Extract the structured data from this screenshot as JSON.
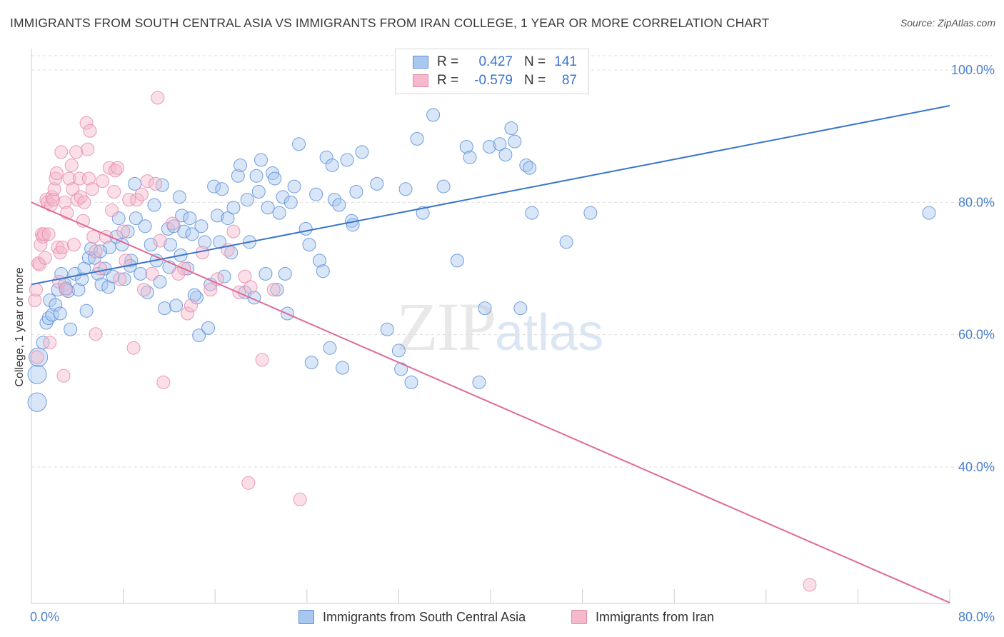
{
  "title": "IMMIGRANTS FROM SOUTH CENTRAL ASIA VS IMMIGRANTS FROM IRAN COLLEGE, 1 YEAR OR MORE CORRELATION CHART",
  "source": "Source: ZipAtlas.com",
  "watermark": {
    "zip": "ZIP",
    "atlas": "atlas"
  },
  "legend": {
    "rows": [
      {
        "r_label": "R =",
        "r_value": "0.427",
        "n_label": "N =",
        "n_value": "141"
      },
      {
        "r_label": "R =",
        "r_value": "-0.579",
        "n_label": "N =",
        "n_value": "87"
      }
    ]
  },
  "colors": {
    "blue_fill": "#a9c8f0",
    "blue_stroke": "#5b8ed6",
    "blue_line": "#3a75cc",
    "pink_fill": "#f5b9cc",
    "pink_stroke": "#e889a8",
    "pink_line": "#e06a98",
    "grid": "#dddddd",
    "tick_text": "#4a7fd0"
  },
  "chart_data": {
    "type": "scatter",
    "ylabel": "College, 1 year or more",
    "xlabel": "",
    "xlim": [
      0,
      80
    ],
    "ylim": [
      20,
      104
    ],
    "x_ticks": [
      "0.0%",
      "80.0%"
    ],
    "y_ticks": [
      {
        "value": 40,
        "label": "40.0%"
      },
      {
        "value": 60,
        "label": "60.0%"
      },
      {
        "value": 80,
        "label": "80.0%"
      },
      {
        "value": 100,
        "label": "100.0%"
      }
    ],
    "grid": true,
    "series": [
      {
        "name": "Immigrants from South Central Asia",
        "color": "blue",
        "trend": {
          "x1": 0,
          "y1": 67.6,
          "x2": 80,
          "y2": 94.6
        },
        "points": [
          [
            0.5,
            49.8
          ],
          [
            0.5,
            54.0
          ],
          [
            0.6,
            56.6
          ],
          [
            1.0,
            58.8
          ],
          [
            1.3,
            61.8
          ],
          [
            1.5,
            62.5
          ],
          [
            1.6,
            65.2
          ],
          [
            1.8,
            63.0
          ],
          [
            2.1,
            64.5
          ],
          [
            2.3,
            66.8
          ],
          [
            2.5,
            63.2
          ],
          [
            2.6,
            69.2
          ],
          [
            2.9,
            67.6
          ],
          [
            3.2,
            66.6
          ],
          [
            3.4,
            60.8
          ],
          [
            3.8,
            69.2
          ],
          [
            4.1,
            66.8
          ],
          [
            4.4,
            68.4
          ],
          [
            4.6,
            70.0
          ],
          [
            4.8,
            63.6
          ],
          [
            5.0,
            71.6
          ],
          [
            5.5,
            71.6
          ],
          [
            5.8,
            69.2
          ],
          [
            6.1,
            67.6
          ],
          [
            6.4,
            70.0
          ],
          [
            6.7,
            67.2
          ],
          [
            6.8,
            73.2
          ],
          [
            7.1,
            68.8
          ],
          [
            7.4,
            74.8
          ],
          [
            7.6,
            77.6
          ],
          [
            7.9,
            73.6
          ],
          [
            8.1,
            68.4
          ],
          [
            8.4,
            75.6
          ],
          [
            8.7,
            71.2
          ],
          [
            9.1,
            77.6
          ],
          [
            9.5,
            69.2
          ],
          [
            9.9,
            76.4
          ],
          [
            10.1,
            66.4
          ],
          [
            10.4,
            73.6
          ],
          [
            10.7,
            79.6
          ],
          [
            10.9,
            71.2
          ],
          [
            11.2,
            68.0
          ],
          [
            11.6,
            64.0
          ],
          [
            11.9,
            76.0
          ],
          [
            12.1,
            73.6
          ],
          [
            12.4,
            76.4
          ],
          [
            12.6,
            64.4
          ],
          [
            12.9,
            80.8
          ],
          [
            13.1,
            78.0
          ],
          [
            13.3,
            75.6
          ],
          [
            13.6,
            70.0
          ],
          [
            13.8,
            77.6
          ],
          [
            14.0,
            75.2
          ],
          [
            14.4,
            65.6
          ],
          [
            14.6,
            59.9
          ],
          [
            14.8,
            76.4
          ],
          [
            15.1,
            74.0
          ],
          [
            15.4,
            61.0
          ],
          [
            15.6,
            67.6
          ],
          [
            15.9,
            82.4
          ],
          [
            16.2,
            78.0
          ],
          [
            16.4,
            74.0
          ],
          [
            16.8,
            68.8
          ],
          [
            17.1,
            77.6
          ],
          [
            17.4,
            72.4
          ],
          [
            17.6,
            79.2
          ],
          [
            18.0,
            84.0
          ],
          [
            18.2,
            85.6
          ],
          [
            18.6,
            66.4
          ],
          [
            19.0,
            74.0
          ],
          [
            19.4,
            65.6
          ],
          [
            19.6,
            84.0
          ],
          [
            19.8,
            81.6
          ],
          [
            20.0,
            86.4
          ],
          [
            20.4,
            69.2
          ],
          [
            20.6,
            79.2
          ],
          [
            21.0,
            84.4
          ],
          [
            21.4,
            66.8
          ],
          [
            21.6,
            78.4
          ],
          [
            21.9,
            80.8
          ],
          [
            22.1,
            69.2
          ],
          [
            22.3,
            63.2
          ],
          [
            22.6,
            80.0
          ],
          [
            22.9,
            82.4
          ],
          [
            23.3,
            88.8
          ],
          [
            23.9,
            76.0
          ],
          [
            24.4,
            55.8
          ],
          [
            24.8,
            81.2
          ],
          [
            25.1,
            71.2
          ],
          [
            25.4,
            69.6
          ],
          [
            25.7,
            86.8
          ],
          [
            26.2,
            85.6
          ],
          [
            26.4,
            80.4
          ],
          [
            26.8,
            79.6
          ],
          [
            27.1,
            55.0
          ],
          [
            27.5,
            86.4
          ],
          [
            27.9,
            77.2
          ],
          [
            28.3,
            81.6
          ],
          [
            28.8,
            87.6
          ],
          [
            30.1,
            82.8
          ],
          [
            31.0,
            60.8
          ],
          [
            32.0,
            57.6
          ],
          [
            32.2,
            54.8
          ],
          [
            32.6,
            82.0
          ],
          [
            33.1,
            52.8
          ],
          [
            33.6,
            89.6
          ],
          [
            34.1,
            78.4
          ],
          [
            35.0,
            93.2
          ],
          [
            35.9,
            82.4
          ],
          [
            37.1,
            71.2
          ],
          [
            37.9,
            88.4
          ],
          [
            38.2,
            86.8
          ],
          [
            39.5,
            64.0
          ],
          [
            39.9,
            88.4
          ],
          [
            40.8,
            88.8
          ],
          [
            41.3,
            87.2
          ],
          [
            41.8,
            91.2
          ],
          [
            42.1,
            89.2
          ],
          [
            42.6,
            64.0
          ],
          [
            43.1,
            85.6
          ],
          [
            43.4,
            85.2
          ],
          [
            43.6,
            78.4
          ],
          [
            46.6,
            74.0
          ],
          [
            48.7,
            78.4
          ],
          [
            39.0,
            52.8
          ],
          [
            3.0,
            67.0
          ],
          [
            5.2,
            73.0
          ],
          [
            9.0,
            82.8
          ],
          [
            11.4,
            82.6
          ],
          [
            13.0,
            72.0
          ],
          [
            16.6,
            82.0
          ],
          [
            18.8,
            80.4
          ],
          [
            21.2,
            83.6
          ],
          [
            24.2,
            73.6
          ],
          [
            26.0,
            58.0
          ],
          [
            28.0,
            76.6
          ],
          [
            6.0,
            72.6
          ],
          [
            8.6,
            70.4
          ],
          [
            12.0,
            70.2
          ],
          [
            14.2,
            66.0
          ],
          [
            78.2,
            78.4
          ]
        ]
      },
      {
        "name": "Immigrants from Iran",
        "color": "pink",
        "trend": {
          "x1": 0,
          "y1": 80.0,
          "x2": 80,
          "y2": 19.5
        },
        "points": [
          [
            0.3,
            65.2
          ],
          [
            0.4,
            66.8
          ],
          [
            0.5,
            56.6
          ],
          [
            0.6,
            70.8
          ],
          [
            0.7,
            70.6
          ],
          [
            0.8,
            73.6
          ],
          [
            0.9,
            75.2
          ],
          [
            1.0,
            74.8
          ],
          [
            1.1,
            75.2
          ],
          [
            1.2,
            71.6
          ],
          [
            1.3,
            80.4
          ],
          [
            1.4,
            80.0
          ],
          [
            1.5,
            75.2
          ],
          [
            1.6,
            58.8
          ],
          [
            1.7,
            79.6
          ],
          [
            1.8,
            80.8
          ],
          [
            1.9,
            80.4
          ],
          [
            2.0,
            82.0
          ],
          [
            2.1,
            83.6
          ],
          [
            2.2,
            84.4
          ],
          [
            2.3,
            73.2
          ],
          [
            2.4,
            68.0
          ],
          [
            2.5,
            72.4
          ],
          [
            2.6,
            87.6
          ],
          [
            2.7,
            73.2
          ],
          [
            2.8,
            53.8
          ],
          [
            2.9,
            80.0
          ],
          [
            3.0,
            66.8
          ],
          [
            3.1,
            78.4
          ],
          [
            3.3,
            83.6
          ],
          [
            3.5,
            85.6
          ],
          [
            3.6,
            82.0
          ],
          [
            3.7,
            73.6
          ],
          [
            3.9,
            87.6
          ],
          [
            4.0,
            80.4
          ],
          [
            4.2,
            83.6
          ],
          [
            4.3,
            80.8
          ],
          [
            4.5,
            77.2
          ],
          [
            4.6,
            80.0
          ],
          [
            4.8,
            92.0
          ],
          [
            4.9,
            88.0
          ],
          [
            5.0,
            83.6
          ],
          [
            5.1,
            90.8
          ],
          [
            5.3,
            82.0
          ],
          [
            5.4,
            74.8
          ],
          [
            5.6,
            72.6
          ],
          [
            5.6,
            60.1
          ],
          [
            6.0,
            70.0
          ],
          [
            6.2,
            83.2
          ],
          [
            6.5,
            74.8
          ],
          [
            6.8,
            85.2
          ],
          [
            7.0,
            78.8
          ],
          [
            7.2,
            81.6
          ],
          [
            7.3,
            84.8
          ],
          [
            7.5,
            85.2
          ],
          [
            7.7,
            68.4
          ],
          [
            8.0,
            75.6
          ],
          [
            8.2,
            71.2
          ],
          [
            8.5,
            80.4
          ],
          [
            8.9,
            58.0
          ],
          [
            9.2,
            80.4
          ],
          [
            9.6,
            81.2
          ],
          [
            9.8,
            66.8
          ],
          [
            10.1,
            83.2
          ],
          [
            10.5,
            69.2
          ],
          [
            10.8,
            82.8
          ],
          [
            11.0,
            95.8
          ],
          [
            11.2,
            74.2
          ],
          [
            11.5,
            52.8
          ],
          [
            12.3,
            76.8
          ],
          [
            12.8,
            69.2
          ],
          [
            13.3,
            70.0
          ],
          [
            13.6,
            63.2
          ],
          [
            13.9,
            64.4
          ],
          [
            14.9,
            72.4
          ],
          [
            15.6,
            66.8
          ],
          [
            16.2,
            68.4
          ],
          [
            17.1,
            72.8
          ],
          [
            17.6,
            75.6
          ],
          [
            18.1,
            66.4
          ],
          [
            18.6,
            68.8
          ],
          [
            18.9,
            37.6
          ],
          [
            19.1,
            67.2
          ],
          [
            20.1,
            56.2
          ],
          [
            21.1,
            66.8
          ],
          [
            23.4,
            35.1
          ],
          [
            67.8,
            22.2
          ]
        ]
      }
    ]
  },
  "bottom_legend": [
    {
      "label": "Immigrants from South Central Asia"
    },
    {
      "label": "Immigrants from Iran"
    }
  ]
}
